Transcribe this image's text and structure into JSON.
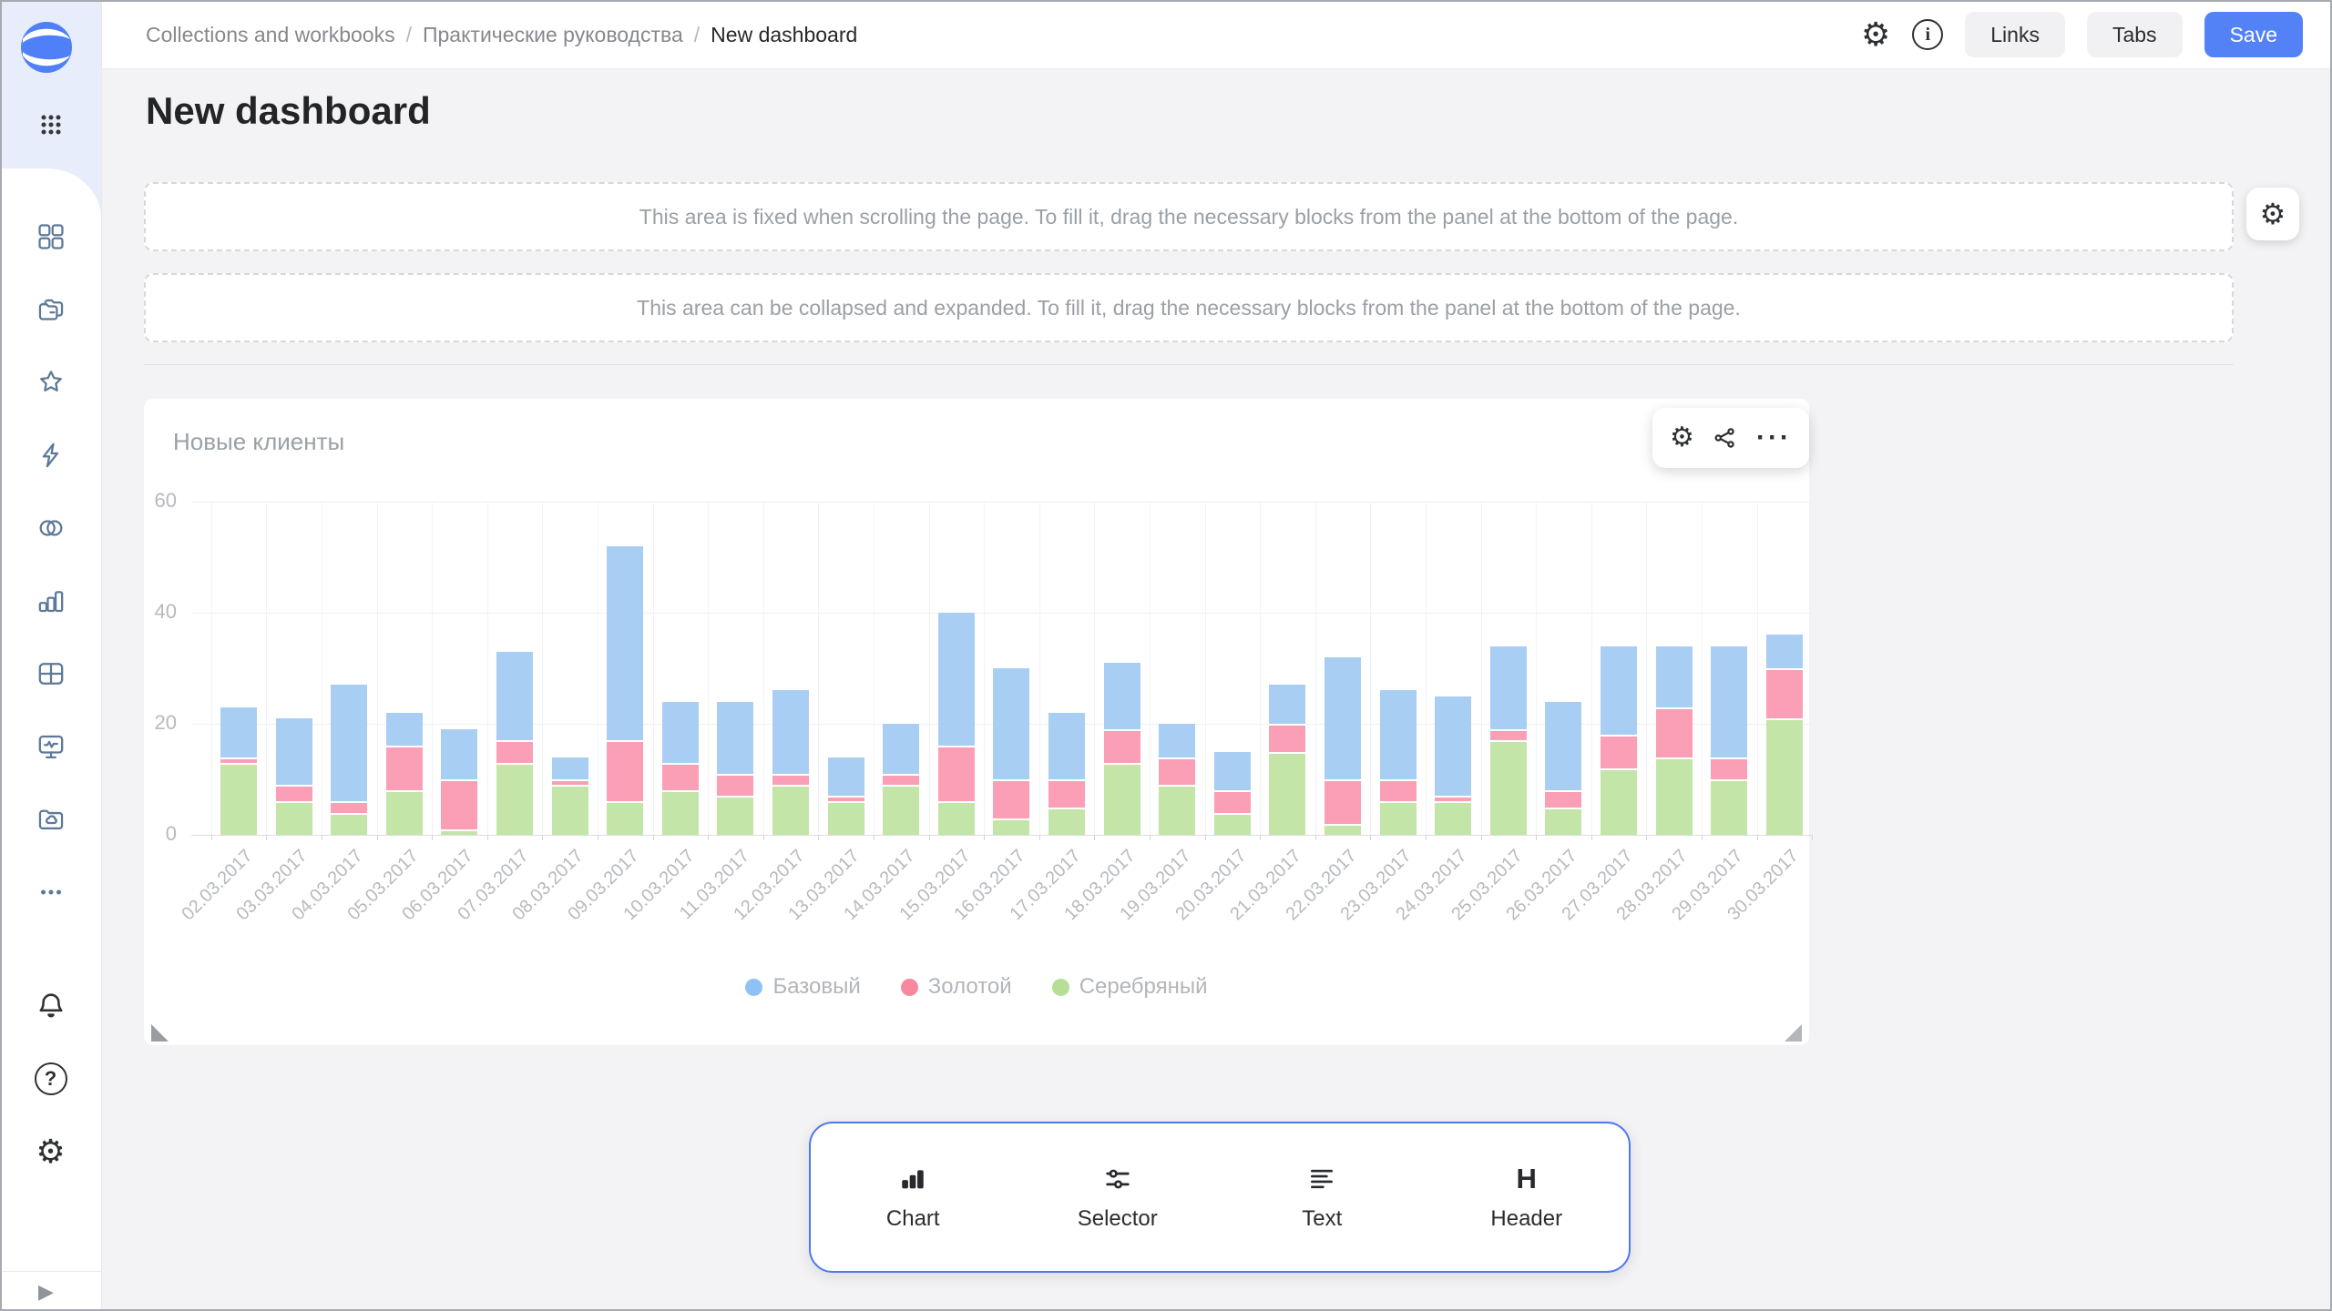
{
  "header": {
    "breadcrumbs": [
      "Collections and workbooks",
      "Практические руководства",
      "New dashboard"
    ],
    "breadcrumb_separator": "/",
    "buttons": {
      "links": "Links",
      "tabs": "Tabs",
      "save": "Save"
    },
    "icons": [
      "settings-icon",
      "info-icon"
    ]
  },
  "sidebar": {
    "icons": [
      "apps-grid-icon",
      "collections-icon",
      "workbooks-icon",
      "favorites-icon",
      "connections-icon",
      "datasets-icon",
      "charts-icon",
      "table-icon",
      "dashboards-icon",
      "storage-icon",
      "more-icon",
      "notifications-icon",
      "help-icon",
      "settings-icon",
      "expand-icon"
    ]
  },
  "page": {
    "title": "New dashboard"
  },
  "areas": {
    "fixed_hint": "This area is fixed when scrolling the page. To fill it, drag the necessary blocks from the panel at the bottom of the page.",
    "collapsible_hint": "This area can be collapsed and expanded. To fill it, drag the necessary blocks from the panel at the bottom of the page."
  },
  "widget": {
    "title": "Новые клиенты",
    "actions": [
      "settings-icon",
      "share-icon",
      "more-icon"
    ]
  },
  "chart_data": {
    "type": "bar",
    "stacked": true,
    "title": "Новые клиенты",
    "categories": [
      "02.03.2017",
      "03.03.2017",
      "04.03.2017",
      "05.03.2017",
      "06.03.2017",
      "07.03.2017",
      "08.03.2017",
      "09.03.2017",
      "10.03.2017",
      "11.03.2017",
      "12.03.2017",
      "13.03.2017",
      "14.03.2017",
      "15.03.2017",
      "16.03.2017",
      "17.03.2017",
      "18.03.2017",
      "19.03.2017",
      "20.03.2017",
      "21.03.2017",
      "22.03.2017",
      "23.03.2017",
      "24.03.2017",
      "25.03.2017",
      "26.03.2017",
      "27.03.2017",
      "28.03.2017",
      "29.03.2017",
      "30.03.2017"
    ],
    "series": [
      {
        "name": "Базовый",
        "color": "#a9cef3",
        "dot_color": "#8fc2f4",
        "values": [
          9,
          12,
          21,
          6,
          9,
          16,
          4,
          35,
          11,
          13,
          15,
          7,
          9,
          24,
          20,
          12,
          12,
          6,
          7,
          7,
          22,
          16,
          18,
          15,
          16,
          16,
          11,
          20,
          6
        ]
      },
      {
        "name": "Золотой",
        "color": "#fa9fb5",
        "dot_color": "#f9889f",
        "values": [
          1,
          3,
          2,
          8,
          9,
          4,
          1,
          11,
          5,
          4,
          2,
          1,
          2,
          10,
          7,
          5,
          6,
          5,
          4,
          5,
          8,
          4,
          1,
          2,
          3,
          6,
          9,
          4,
          9
        ]
      },
      {
        "name": "Серебряный",
        "color": "#c3e5a8",
        "dot_color": "#b6df95",
        "values": [
          13,
          6,
          4,
          8,
          1,
          13,
          9,
          6,
          8,
          7,
          9,
          6,
          9,
          6,
          3,
          5,
          13,
          9,
          4,
          15,
          2,
          6,
          6,
          17,
          5,
          12,
          14,
          10,
          21
        ]
      }
    ],
    "stack_order_bottom_to_top": [
      "Серебряный",
      "Золотой",
      "Базовый"
    ],
    "ylim": [
      0,
      60
    ],
    "yticks": [
      0,
      20,
      40,
      60
    ],
    "grid": true,
    "legend_position": "bottom",
    "xlabel_rotation": -45
  },
  "bottom_panel": {
    "items": [
      {
        "icon": "chart-icon",
        "label": "Chart"
      },
      {
        "icon": "selector-icon",
        "label": "Selector"
      },
      {
        "icon": "text-icon",
        "label": "Text"
      },
      {
        "icon": "header-icon",
        "label": "Header"
      }
    ]
  },
  "colors": {
    "accent": "#4a79f2",
    "save_button": "#5282f5",
    "sidebar_icon": "#5d7999",
    "page_bg": "#f3f3f5",
    "muted_text": "#9aa0a5"
  }
}
